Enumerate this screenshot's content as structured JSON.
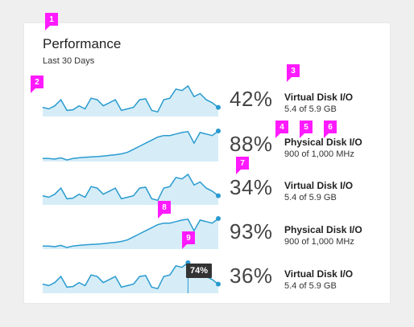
{
  "header": {
    "title": "Performance",
    "subtitle": "Last 30 Days"
  },
  "colors": {
    "line": "#2a9bd0",
    "fill": "#d6edf7",
    "marker": "#ff1aff"
  },
  "rows": [
    {
      "percent": "42%",
      "name": "Virtual Disk I/O",
      "detail": "5.4 of 5.9 GB",
      "series": [
        0.3,
        0.25,
        0.35,
        0.55,
        0.2,
        0.22,
        0.35,
        0.25,
        0.6,
        0.55,
        0.35,
        0.45,
        0.55,
        0.2,
        0.25,
        0.3,
        0.55,
        0.58,
        0.2,
        0.15,
        0.55,
        0.6,
        0.9,
        0.85,
        1.0,
        0.65,
        0.75,
        0.55,
        0.45,
        0.3
      ]
    },
    {
      "percent": "88%",
      "name": "Physical Disk I/O",
      "detail": "900 of 1,000 MHz",
      "series": [
        0.1,
        0.1,
        0.08,
        0.12,
        0.05,
        0.1,
        0.12,
        0.14,
        0.15,
        0.16,
        0.18,
        0.2,
        0.22,
        0.25,
        0.3,
        0.4,
        0.5,
        0.6,
        0.7,
        0.8,
        0.85,
        0.85,
        0.9,
        0.95,
        0.98,
        0.6,
        0.95,
        0.9,
        0.85,
        1.0
      ]
    },
    {
      "percent": "34%",
      "name": "Virtual Disk I/O",
      "detail": "5.4 of 5.9 GB",
      "series": [
        0.3,
        0.25,
        0.35,
        0.55,
        0.2,
        0.22,
        0.35,
        0.25,
        0.6,
        0.55,
        0.35,
        0.45,
        0.55,
        0.2,
        0.25,
        0.3,
        0.55,
        0.58,
        0.2,
        0.15,
        0.55,
        0.6,
        0.9,
        0.85,
        1.0,
        0.65,
        0.75,
        0.55,
        0.45,
        0.3
      ]
    },
    {
      "percent": "93%",
      "name": "Physical Disk I/O",
      "detail": "900 of 1,000 MHz",
      "series": [
        0.1,
        0.1,
        0.08,
        0.12,
        0.05,
        0.1,
        0.12,
        0.14,
        0.15,
        0.16,
        0.18,
        0.2,
        0.22,
        0.25,
        0.3,
        0.4,
        0.5,
        0.6,
        0.7,
        0.8,
        0.85,
        0.85,
        0.9,
        0.95,
        0.98,
        0.6,
        0.95,
        0.9,
        0.85,
        1.0
      ]
    },
    {
      "percent": "36%",
      "name": "Virtual Disk I/O",
      "detail": "5.4 of 5.9 GB",
      "series": [
        0.3,
        0.25,
        0.35,
        0.55,
        0.2,
        0.22,
        0.35,
        0.25,
        0.6,
        0.55,
        0.35,
        0.45,
        0.55,
        0.2,
        0.25,
        0.3,
        0.55,
        0.58,
        0.2,
        0.15,
        0.55,
        0.6,
        0.9,
        0.85,
        1.0,
        0.65,
        0.75,
        0.55,
        0.45,
        0.3
      ],
      "tooltip": "74%",
      "hover_index": 24
    }
  ],
  "markers": [
    "1",
    "2",
    "3",
    "4",
    "5",
    "6",
    "7",
    "8",
    "9"
  ]
}
